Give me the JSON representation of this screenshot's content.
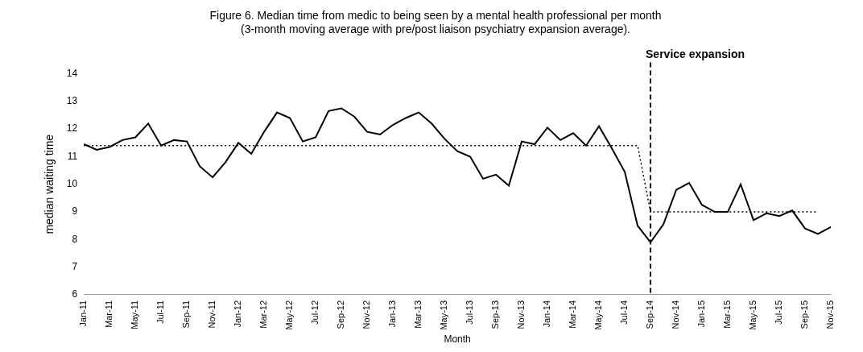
{
  "chart_data": {
    "type": "line",
    "title": [
      "Figure 6. Median time from medic to being seen by a mental health professional per month",
      "(3-month moving average with pre/post liaison psychiatry expansion average)."
    ],
    "x_label": "Month",
    "y_label": "median waiting time",
    "categories": [
      "Jan-11",
      null,
      "Mar-11",
      null,
      "May-11",
      null,
      "Jul-11",
      null,
      "Sep-11",
      null,
      "Nov-11",
      null,
      "Jan-12",
      null,
      "Mar-12",
      null,
      "May-12",
      null,
      "Jul-12",
      null,
      "Sep-12",
      null,
      "Nov-12",
      null,
      "Jan-13",
      null,
      "Mar-13",
      null,
      "May-13",
      null,
      "Jul-13",
      null,
      "Sep-13",
      null,
      "Nov-13",
      null,
      "Jan-14",
      null,
      "Mar-14",
      null,
      "May-14",
      null,
      "Jul-14",
      null,
      "Sep-14",
      null,
      "Nov-14",
      null,
      "Jan-15",
      null,
      "Mar-15",
      null,
      "May-15",
      null,
      "Jul-15",
      null,
      "Sep-15",
      null,
      "Nov-15"
    ],
    "series": [
      {
        "name": "median waiting time",
        "color": "#000000",
        "line_style": "solid",
        "values": [
          11.45,
          11.25,
          11.35,
          11.6,
          11.7,
          12.2,
          11.4,
          11.6,
          11.55,
          10.65,
          10.25,
          10.8,
          11.5,
          11.1,
          11.9,
          12.6,
          12.4,
          11.55,
          11.7,
          12.65,
          12.75,
          12.45,
          11.9,
          11.8,
          12.15,
          12.4,
          12.6,
          12.2,
          11.65,
          11.2,
          11.0,
          10.2,
          10.35,
          9.95,
          11.55,
          11.45,
          12.05,
          11.6,
          11.85,
          11.4,
          12.1,
          11.3,
          10.45,
          8.5,
          7.9,
          8.55,
          9.8,
          10.05,
          9.25,
          9.0,
          9.0,
          10.0,
          8.7,
          8.95,
          8.85,
          9.05,
          8.4,
          8.2,
          8.45
        ]
      },
      {
        "name": "pre/post liaison psychiatry expansion average",
        "color": "#000000",
        "line_style": "dotted",
        "values": [
          11.4,
          11.4,
          11.4,
          11.4,
          11.4,
          11.4,
          11.4,
          11.4,
          11.4,
          11.4,
          11.4,
          11.4,
          11.4,
          11.4,
          11.4,
          11.4,
          11.4,
          11.4,
          11.4,
          11.4,
          11.4,
          11.4,
          11.4,
          11.4,
          11.4,
          11.4,
          11.4,
          11.4,
          11.4,
          11.4,
          11.4,
          11.4,
          11.4,
          11.4,
          11.4,
          11.4,
          11.4,
          11.4,
          11.4,
          11.4,
          11.4,
          11.4,
          11.4,
          11.4,
          9.0,
          9.0,
          9.0,
          9.0,
          9.0,
          9.0,
          9.0,
          9.0,
          9.0,
          9.0,
          9.0,
          9.0,
          9.0,
          9.0,
          null
        ]
      }
    ],
    "annotations": [
      {
        "text": "Service expansion",
        "x": "Sep-14",
        "line_style": "dashed"
      }
    ],
    "ylim": [
      6,
      14
    ],
    "yticks": [
      6,
      7,
      8,
      9,
      10,
      11,
      12,
      13,
      14
    ],
    "grid": false,
    "legend": "none"
  }
}
